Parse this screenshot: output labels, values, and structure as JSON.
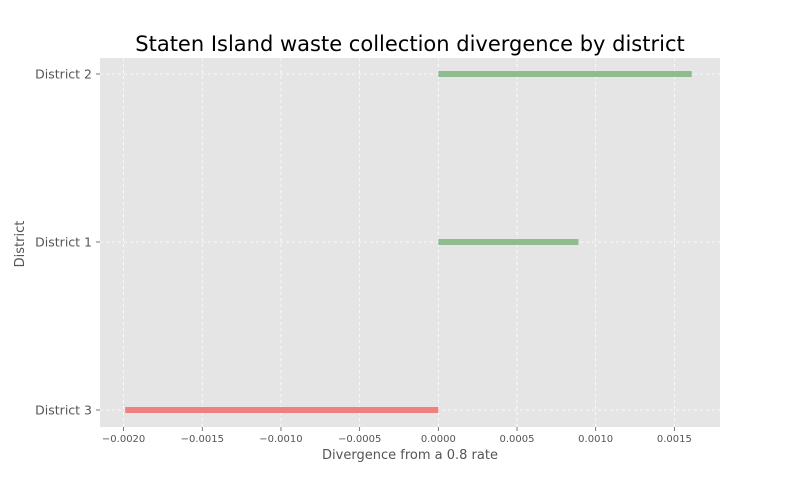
{
  "chart_data": {
    "type": "bar",
    "orientation": "horizontal",
    "title": "Staten Island waste collection divergence by district",
    "xlabel": "Divergence from a 0.8 rate",
    "ylabel": "District",
    "categories": [
      "District 3",
      "District 1",
      "District 2"
    ],
    "values": [
      -0.00199,
      0.00089,
      0.00161
    ],
    "colors": {
      "positive": "#8fbc8f",
      "negative": "#f08080",
      "plot_background": "#e5e5e5",
      "grid": "#ffffff",
      "tick_text": "#555555"
    },
    "xlim": [
      -0.00215,
      0.00179
    ],
    "xticks": [
      -0.002,
      -0.0015,
      -0.001,
      -0.0005,
      0.0,
      0.0005,
      0.001,
      0.0015
    ],
    "xtick_labels": [
      "−0.0020",
      "−0.0015",
      "−0.0010",
      "−0.0005",
      "0.0000",
      "0.0005",
      "0.0010",
      "0.0015"
    ],
    "grid": true,
    "grid_style": "dashed"
  }
}
